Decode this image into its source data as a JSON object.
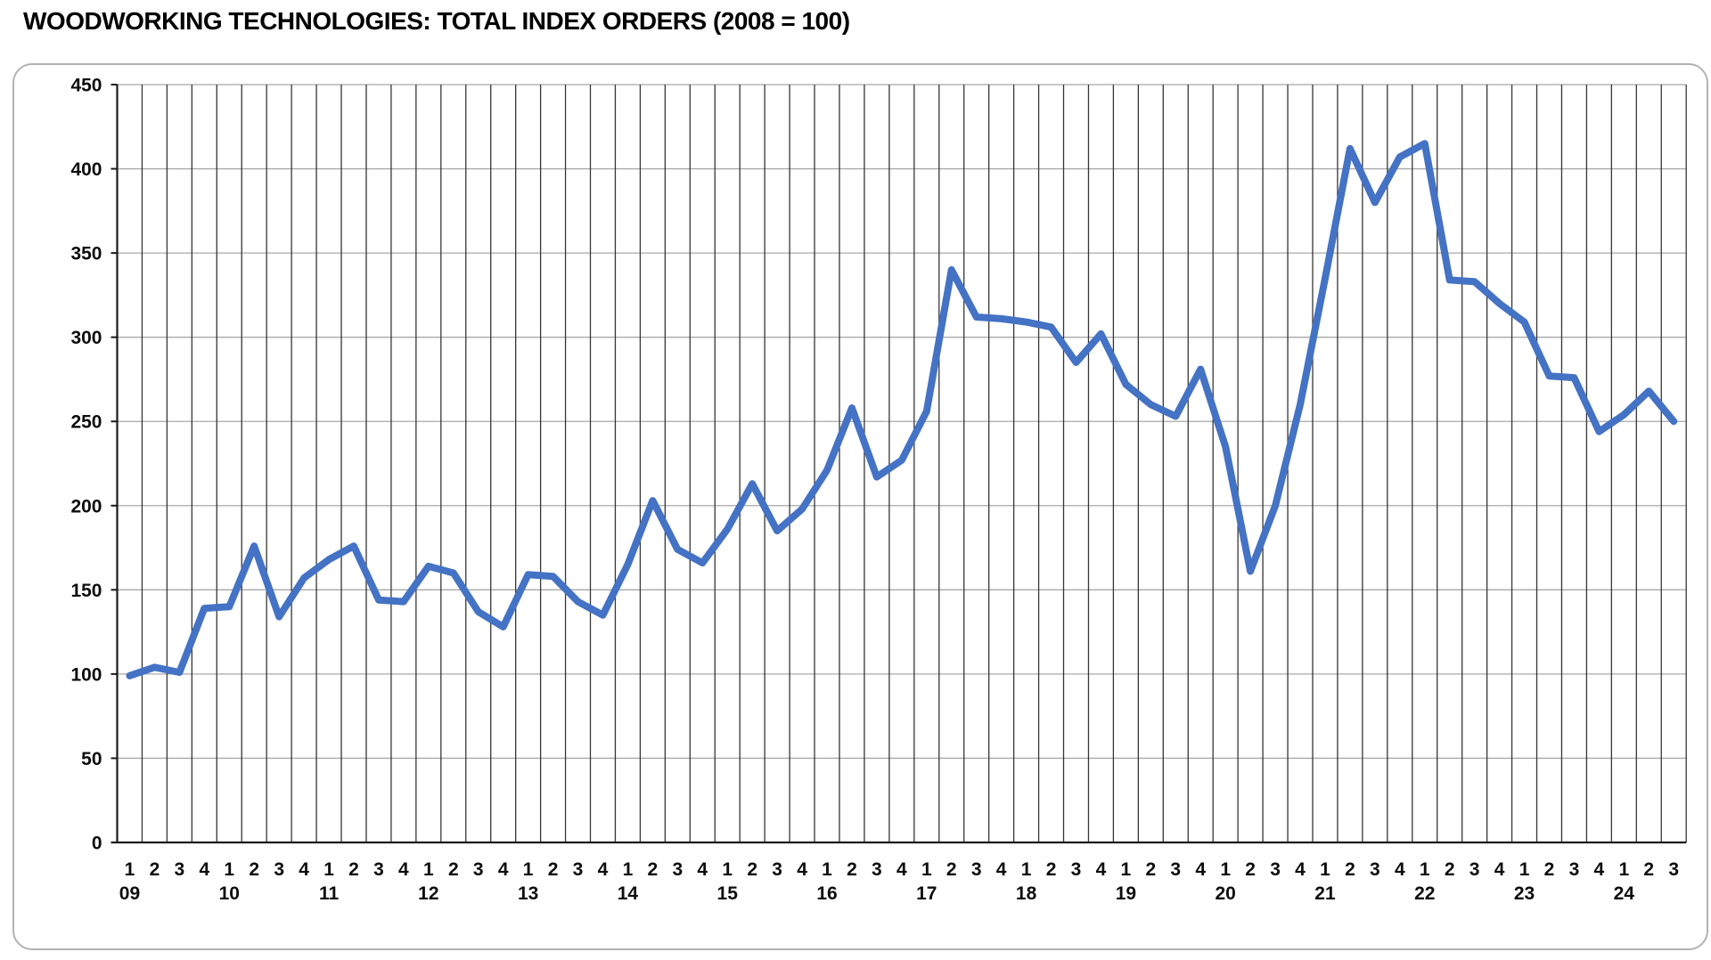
{
  "title": "WOODWORKING TECHNOLOGIES: TOTAL INDEX ORDERS (2008 = 100)",
  "chart_data": {
    "type": "line",
    "title": "WOODWORKING TECHNOLOGIES: TOTAL INDEX ORDERS (2008 = 100)",
    "xlabel": "",
    "ylabel": "",
    "ylim": [
      0,
      450
    ],
    "ytick_interval": 50,
    "ytick_labels": [
      "0",
      "50",
      "100",
      "150",
      "200",
      "250",
      "300",
      "350",
      "400",
      "450"
    ],
    "legend_position": "none",
    "grid": {
      "horizontal": true,
      "vertical": true
    },
    "line_color": "#4472C4",
    "line_width": 8,
    "gridline_color_horizontal": "#a8a8a8",
    "gridline_color_vertical": "#363636",
    "axis_color": "#1a1a1a",
    "x_axis_rows": [
      "quarter",
      "year"
    ],
    "points": [
      {
        "y": "09",
        "q": "1",
        "v": 99
      },
      {
        "y": "09",
        "q": "2",
        "v": 104
      },
      {
        "y": "09",
        "q": "3",
        "v": 101
      },
      {
        "y": "09",
        "q": "4",
        "v": 139
      },
      {
        "y": "10",
        "q": "1",
        "v": 140
      },
      {
        "y": "10",
        "q": "2",
        "v": 176
      },
      {
        "y": "10",
        "q": "3",
        "v": 134
      },
      {
        "y": "10",
        "q": "4",
        "v": 157
      },
      {
        "y": "11",
        "q": "1",
        "v": 168
      },
      {
        "y": "11",
        "q": "2",
        "v": 176
      },
      {
        "y": "11",
        "q": "3",
        "v": 144
      },
      {
        "y": "11",
        "q": "4",
        "v": 143
      },
      {
        "y": "12",
        "q": "1",
        "v": 164
      },
      {
        "y": "12",
        "q": "2",
        "v": 160
      },
      {
        "y": "12",
        "q": "3",
        "v": 137
      },
      {
        "y": "12",
        "q": "4",
        "v": 128
      },
      {
        "y": "13",
        "q": "1",
        "v": 159
      },
      {
        "y": "13",
        "q": "2",
        "v": 158
      },
      {
        "y": "13",
        "q": "3",
        "v": 143
      },
      {
        "y": "13",
        "q": "4",
        "v": 135
      },
      {
        "y": "14",
        "q": "1",
        "v": 165
      },
      {
        "y": "14",
        "q": "2",
        "v": 203
      },
      {
        "y": "14",
        "q": "3",
        "v": 174
      },
      {
        "y": "14",
        "q": "4",
        "v": 166
      },
      {
        "y": "15",
        "q": "1",
        "v": 186
      },
      {
        "y": "15",
        "q": "2",
        "v": 213
      },
      {
        "y": "15",
        "q": "3",
        "v": 185
      },
      {
        "y": "15",
        "q": "4",
        "v": 198
      },
      {
        "y": "16",
        "q": "1",
        "v": 221
      },
      {
        "y": "16",
        "q": "2",
        "v": 258
      },
      {
        "y": "16",
        "q": "3",
        "v": 217
      },
      {
        "y": "16",
        "q": "4",
        "v": 227
      },
      {
        "y": "17",
        "q": "1",
        "v": 256
      },
      {
        "y": "17",
        "q": "2",
        "v": 340
      },
      {
        "y": "17",
        "q": "3",
        "v": 312
      },
      {
        "y": "17",
        "q": "4",
        "v": 311
      },
      {
        "y": "18",
        "q": "1",
        "v": 309
      },
      {
        "y": "18",
        "q": "2",
        "v": 306
      },
      {
        "y": "18",
        "q": "3",
        "v": 285
      },
      {
        "y": "18",
        "q": "4",
        "v": 302
      },
      {
        "y": "19",
        "q": "1",
        "v": 272
      },
      {
        "y": "19",
        "q": "2",
        "v": 260
      },
      {
        "y": "19",
        "q": "3",
        "v": 253
      },
      {
        "y": "19",
        "q": "4",
        "v": 281
      },
      {
        "y": "20",
        "q": "1",
        "v": 235
      },
      {
        "y": "20",
        "q": "2",
        "v": 161
      },
      {
        "y": "20",
        "q": "3",
        "v": 200
      },
      {
        "y": "20",
        "q": "4",
        "v": 260
      },
      {
        "y": "21",
        "q": "1",
        "v": 335
      },
      {
        "y": "21",
        "q": "2",
        "v": 412
      },
      {
        "y": "21",
        "q": "3",
        "v": 380
      },
      {
        "y": "21",
        "q": "4",
        "v": 407
      },
      {
        "y": "22",
        "q": "1",
        "v": 415
      },
      {
        "y": "22",
        "q": "2",
        "v": 334
      },
      {
        "y": "22",
        "q": "3",
        "v": 333
      },
      {
        "y": "22",
        "q": "4",
        "v": 320
      },
      {
        "y": "23",
        "q": "1",
        "v": 309
      },
      {
        "y": "23",
        "q": "2",
        "v": 277
      },
      {
        "y": "23",
        "q": "3",
        "v": 276
      },
      {
        "y": "23",
        "q": "4",
        "v": 244
      },
      {
        "y": "24",
        "q": "1",
        "v": 254
      },
      {
        "y": "24",
        "q": "2",
        "v": 268
      },
      {
        "y": "24",
        "q": "3",
        "v": 250
      }
    ]
  }
}
